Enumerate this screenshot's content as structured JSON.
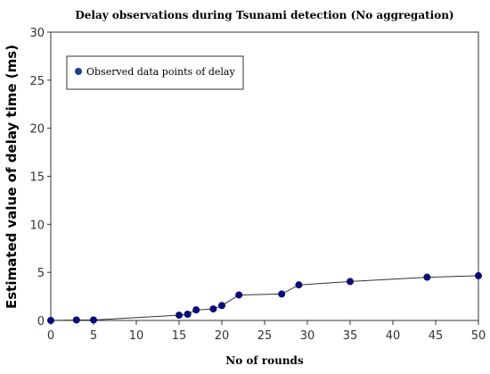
{
  "chart_data": {
    "type": "scatter",
    "title": "Delay observations during Tsunami detection (No aggregation)",
    "xlabel": "No of rounds",
    "ylabel": "Estimated value of delay time (ms)",
    "xlim": [
      0,
      50
    ],
    "ylim": [
      0,
      30
    ],
    "xticks": [
      0,
      5,
      10,
      15,
      20,
      25,
      30,
      35,
      40,
      45,
      50
    ],
    "yticks": [
      0,
      5,
      10,
      15,
      20,
      25,
      30
    ],
    "grid": false,
    "legend_position": "top-left",
    "series": [
      {
        "name": "Observed data points of delay",
        "color": "#0a0a78",
        "line_color": "#333333",
        "connected": true,
        "x": [
          0,
          3,
          5,
          15,
          16,
          17,
          19,
          20,
          22,
          27,
          29,
          35,
          44,
          50
        ],
        "y": [
          0.0,
          0.05,
          0.05,
          0.55,
          0.65,
          1.1,
          1.2,
          1.55,
          2.65,
          2.75,
          3.7,
          4.05,
          4.5,
          4.65
        ]
      }
    ]
  }
}
